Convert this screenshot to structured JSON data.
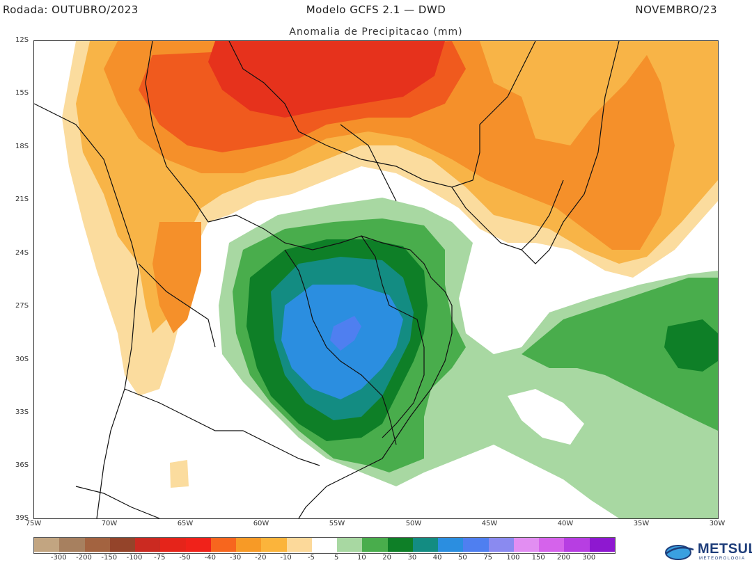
{
  "header": {
    "run": "Rodada:  OUTUBRO/2023",
    "model": "Modelo GCFS 2.1 — DWD",
    "target": "NOVEMBRO/23",
    "subtitle": "Anomalia de Precipitacao (mm)"
  },
  "map": {
    "region": "South America / South Atlantic",
    "lat_labels": [
      "12S",
      "15S",
      "18S",
      "21S",
      "24S",
      "27S",
      "30S",
      "33S",
      "36S",
      "39S"
    ],
    "lon_labels": [
      "75W",
      "70W",
      "65W",
      "60W",
      "55W",
      "50W",
      "45W",
      "40W",
      "35W",
      "30W"
    ],
    "fields": [
      {
        "name": "dry-north",
        "category": "-10",
        "color": "#fbdc9e"
      },
      {
        "name": "dry-north-core",
        "category": "-20",
        "color": "#f8b447"
      },
      {
        "name": "dry-core",
        "category": "-30",
        "color": "#f5902a"
      },
      {
        "name": "dry-core-strong",
        "category": "-50",
        "color": "#f05a1e"
      },
      {
        "name": "dry-core-extreme",
        "category": "-75",
        "color": "#e6321c"
      },
      {
        "name": "wet-south",
        "category": "10",
        "color": "#a8d8a2"
      },
      {
        "name": "wet-south-core",
        "category": "20",
        "color": "#49ad4c"
      },
      {
        "name": "wet-south-strong",
        "category": "30",
        "color": "#0e7f27"
      },
      {
        "name": "wet-south-stronger",
        "category": "40",
        "color": "#138c82"
      },
      {
        "name": "wet-south-extreme",
        "category": "50",
        "color": "#2b8ee0"
      },
      {
        "name": "wet-south-peak",
        "category": "75",
        "color": "#4f7ff0"
      }
    ]
  },
  "legend": {
    "colors": [
      "#c2a581",
      "#a7805f",
      "#a36340",
      "#94442a",
      "#cb2a21",
      "#e5241a",
      "#f0221a",
      "#f7661e",
      "#f79a26",
      "#fbb43b",
      "#fcd99a",
      "#ffffff",
      "#a8d8a2",
      "#49ad4c",
      "#0e7f27",
      "#138c82",
      "#2b8ee0",
      "#4f7ff0",
      "#8a8af0",
      "#e28ef2",
      "#d563eb",
      "#b73ee2",
      "#8e18d0"
    ],
    "labels": [
      "-300",
      "-200",
      "-150",
      "-100",
      "-75",
      "-50",
      "-40",
      "-30",
      "-20",
      "-10",
      "-5",
      "5",
      "10",
      "20",
      "30",
      "40",
      "50",
      "75",
      "100",
      "150",
      "200",
      "300"
    ]
  },
  "logo": {
    "name": "METSUL",
    "tagline": "METEOROLOGIA",
    "colors": {
      "primary": "#1e3d7a",
      "accent": "#3aa0e0"
    }
  }
}
